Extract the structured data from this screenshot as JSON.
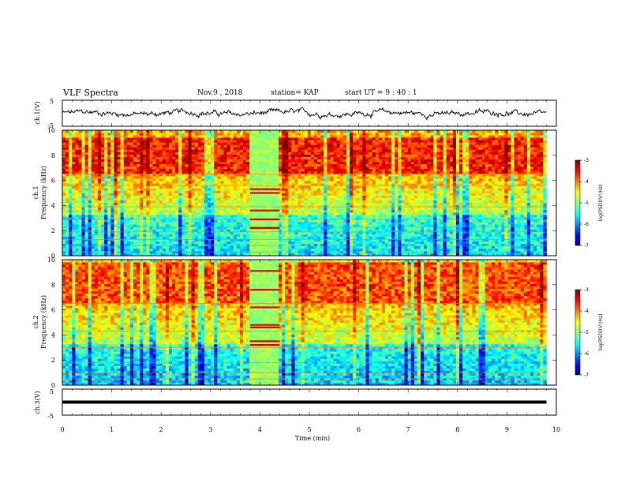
{
  "header": {
    "title": "VLF Spectra",
    "date": "Nov.9 , 2018",
    "station": "station= KAP",
    "start": "start UT = 9 : 40 : 1"
  },
  "chart_data": [
    {
      "type": "line",
      "panel": "ch.1 waveform",
      "ylabel": "ch.1(V)",
      "ylim": [
        -5,
        5
      ],
      "y_ticks": [
        "5",
        "-5"
      ],
      "xlim": [
        0,
        10
      ],
      "trace": "noisy waveform fluctuating about 0 V, amplitude roughly ±1.5 V, covering 0 to 9.8 min"
    },
    {
      "type": "heatmap",
      "panel": "ch.1 spectrogram",
      "ylabel": "ch.1 Frequency (kHz)",
      "ylim": [
        0,
        10
      ],
      "y_ticks": [
        "0",
        "2",
        "4",
        "6",
        "8",
        "10"
      ],
      "xlim": [
        0,
        10
      ],
      "colorbar": {
        "label": "log(PSD)(V²/Hz)",
        "range": [
          -7,
          -3
        ],
        "ticks": [
          "-3",
          "-4",
          "-5",
          "-6",
          "-7"
        ]
      },
      "features": {
        "hiss_band_khz": [
          6.5,
          9.5
        ],
        "hiss_level": -3.6,
        "low_band_level": -5.6,
        "horizontal_lines_khz": [
          0.3,
          0.8,
          1.3,
          1.9,
          2.3,
          2.9,
          3.9,
          5.6,
          6.5
        ],
        "disturbance_time_min": [
          3.8,
          4.4
        ],
        "disturbance_lines_khz": [
          2.2,
          2.9,
          3.6,
          5.0,
          5.3
        ]
      }
    },
    {
      "type": "heatmap",
      "panel": "ch.2 spectrogram",
      "ylabel": "ch.2 Frequency (kHz)",
      "ylim": [
        0,
        10
      ],
      "y_ticks": [
        "0",
        "2",
        "4",
        "6",
        "8",
        "10"
      ],
      "xlim": [
        0,
        10
      ],
      "colorbar": {
        "label": "log(PSD)(V²/Hz)",
        "range": [
          -7,
          -3
        ],
        "ticks": [
          "-3",
          "-4",
          "-5",
          "-6",
          "-7"
        ]
      },
      "features": {
        "hiss_band_khz": [
          6.5,
          9.8
        ],
        "hiss_level": -3.8,
        "low_band_level": -5.7,
        "horizontal_lines_khz": [
          0.5,
          1.0,
          1.8,
          3.0,
          4.3,
          6.5
        ],
        "disturbance_time_min": [
          3.8,
          4.4
        ],
        "disturbance_lines_khz": [
          3.2,
          3.5,
          4.6,
          4.8,
          6.2,
          7.6,
          9.1
        ]
      }
    },
    {
      "type": "line",
      "panel": "ch.3 waveform",
      "ylabel": "ch.3(V)",
      "ylim": [
        -5,
        5
      ],
      "y_ticks": [
        "5",
        "-5"
      ],
      "xlim": [
        0,
        10
      ],
      "trace": "flat line at about 0 V over 0 to 9.8 min"
    }
  ],
  "x_axis": {
    "label": "Time (min)",
    "ticks": [
      "0",
      "1",
      "2",
      "3",
      "4",
      "5",
      "6",
      "7",
      "8",
      "9",
      "10"
    ],
    "data_end_min": 9.8
  },
  "colors": {
    "trace": "#000000",
    "jet_low": "#00007f",
    "jet_high": "#7f0000"
  }
}
